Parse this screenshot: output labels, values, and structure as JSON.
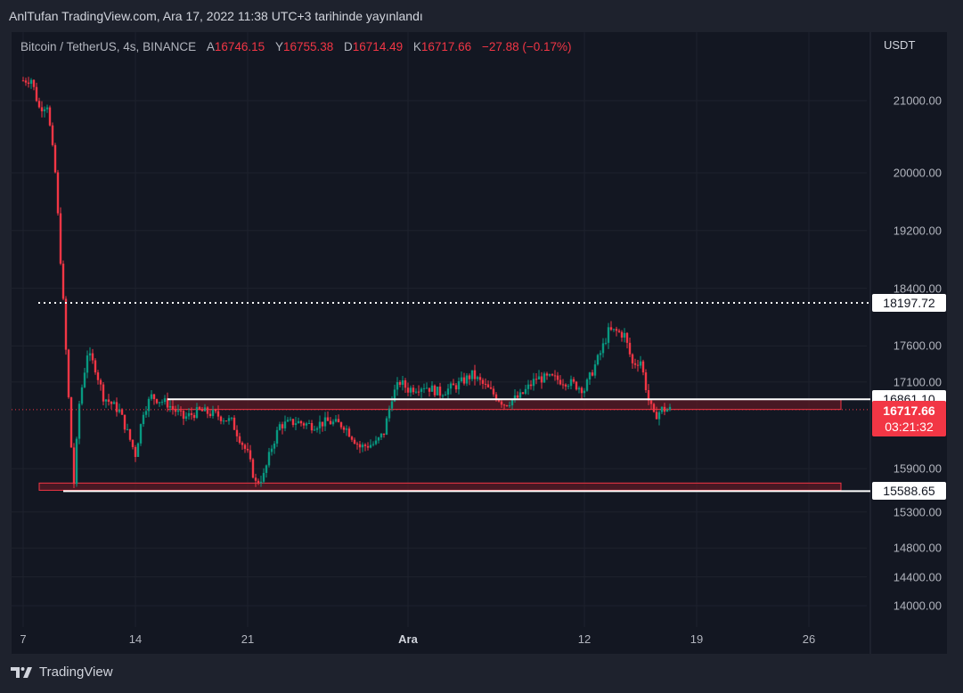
{
  "header": {
    "published": "AnlTufan TradingView.com, Ara 17, 2022 11:38 UTC+3 tarihinde yayınlandı"
  },
  "legend": {
    "symbol": "Bitcoin / TetherUS, 4s, BINANCE",
    "open_label": "A",
    "open": "16746.15",
    "high_label": "Y",
    "high": "16755.38",
    "low_label": "D",
    "low": "16714.49",
    "close_label": "K",
    "close": "16717.66",
    "change": "−27.88 (−0.17%)"
  },
  "footer": {
    "brand": "TradingView"
  },
  "colors": {
    "up": "#089981",
    "down": "#f23645",
    "background": "#131722",
    "grid": "#1e222d",
    "zone_fill": "#5b1a24",
    "zone_border": "#f23645"
  },
  "chart_data": {
    "type": "candlestick",
    "title": "",
    "unit": "USDT",
    "x_ticks": [
      "7",
      "14",
      "21",
      "Ara",
      "12",
      "19",
      "26"
    ],
    "y_ticks": [
      "21000.00",
      "20000.00",
      "19200.00",
      "18400.00",
      "17600.00",
      "17100.00",
      "15900.00",
      "15300.00",
      "14800.00",
      "14400.00",
      "14000.00"
    ],
    "ylim": [
      13850,
      21400
    ],
    "grid": true,
    "levels": [
      {
        "label": "18197.72",
        "value": 18197.72,
        "style": "dotted"
      },
      {
        "label": "16861.10",
        "value": 16861.1,
        "style": "solid"
      },
      {
        "label": "15588.65",
        "value": 15588.65,
        "style": "solid"
      }
    ],
    "zones": [
      {
        "from_day": "2022-11-16",
        "to_day": "2022-12-28",
        "low": 16720,
        "high": 16860
      },
      {
        "from_day": "2022-11-08",
        "to_day": "2022-12-28",
        "low": 15600,
        "high": 15700
      }
    ],
    "last_price": {
      "value": "16717.66",
      "countdown": "03:21:32"
    },
    "price_path": [
      [
        "2022-11-07T00:00",
        21280
      ],
      [
        "2022-11-07T12:00",
        21300
      ],
      [
        "2022-11-08T00:00",
        20900
      ],
      [
        "2022-11-08T12:00",
        20950
      ],
      [
        "2022-11-09T00:00",
        20000
      ],
      [
        "2022-11-09T12:00",
        18200
      ],
      [
        "2022-11-10T00:00",
        16200
      ],
      [
        "2022-11-10T04:00",
        15700
      ],
      [
        "2022-11-10T12:00",
        16800
      ],
      [
        "2022-11-11T00:00",
        17500
      ],
      [
        "2022-11-11T12:00",
        17300
      ],
      [
        "2022-11-12T00:00",
        16900
      ],
      [
        "2022-11-13T00:00",
        16700
      ],
      [
        "2022-11-14T00:00",
        16100
      ],
      [
        "2022-11-14T12:00",
        16700
      ],
      [
        "2022-11-15T00:00",
        16900
      ],
      [
        "2022-11-16T00:00",
        16800
      ],
      [
        "2022-11-17T00:00",
        16600
      ],
      [
        "2022-11-18T00:00",
        16700
      ],
      [
        "2022-11-19T00:00",
        16650
      ],
      [
        "2022-11-20T00:00",
        16550
      ],
      [
        "2022-11-21T00:00",
        16100
      ],
      [
        "2022-11-21T12:00",
        15700
      ],
      [
        "2022-11-22T00:00",
        15800
      ],
      [
        "2022-11-22T12:00",
        16200
      ],
      [
        "2022-11-23T00:00",
        16500
      ],
      [
        "2022-11-24T00:00",
        16550
      ],
      [
        "2022-11-25T00:00",
        16500
      ],
      [
        "2022-11-26T00:00",
        16550
      ],
      [
        "2022-11-27T00:00",
        16500
      ],
      [
        "2022-11-28T00:00",
        16200
      ],
      [
        "2022-11-29T00:00",
        16250
      ],
      [
        "2022-11-29T12:00",
        16400
      ],
      [
        "2022-11-30T00:00",
        16900
      ],
      [
        "2022-11-30T12:00",
        17100
      ],
      [
        "2022-12-01T00:00",
        17000
      ],
      [
        "2022-12-02T00:00",
        17050
      ],
      [
        "2022-12-03T00:00",
        16950
      ],
      [
        "2022-12-04T00:00",
        17050
      ],
      [
        "2022-12-05T00:00",
        17200
      ],
      [
        "2022-12-06T00:00",
        17000
      ],
      [
        "2022-12-07T00:00",
        16800
      ],
      [
        "2022-12-08T00:00",
        16900
      ],
      [
        "2022-12-09T00:00",
        17150
      ],
      [
        "2022-12-10T00:00",
        17150
      ],
      [
        "2022-12-11T00:00",
        17100
      ],
      [
        "2022-12-12T00:00",
        17000
      ],
      [
        "2022-12-13T00:00",
        17500
      ],
      [
        "2022-12-13T12:00",
        17800
      ],
      [
        "2022-12-14T00:00",
        17800
      ],
      [
        "2022-12-14T12:00",
        17750
      ],
      [
        "2022-12-15T00:00",
        17350
      ],
      [
        "2022-12-15T12:00",
        17400
      ],
      [
        "2022-12-16T00:00",
        16850
      ],
      [
        "2022-12-16T08:00",
        16620
      ],
      [
        "2022-12-16T20:00",
        16720
      ],
      [
        "2022-12-17T08:00",
        16718
      ]
    ]
  }
}
